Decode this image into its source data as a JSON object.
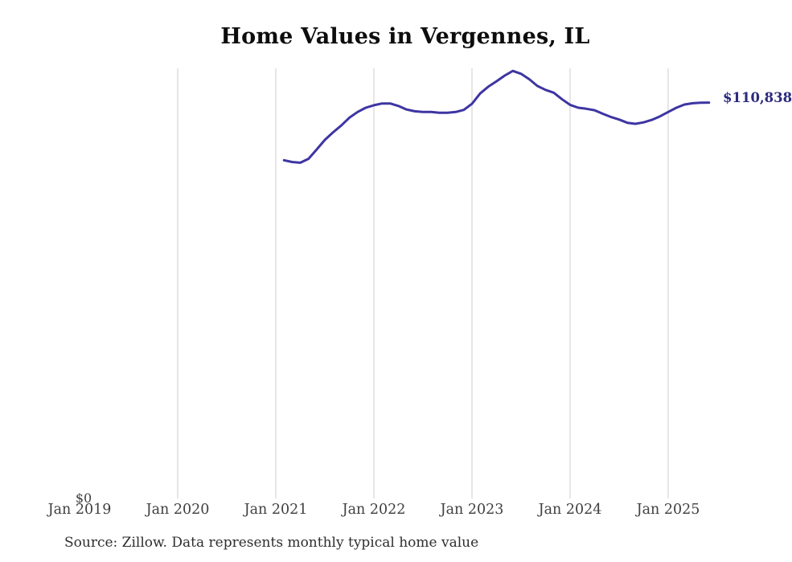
{
  "header": {
    "title": "Home Values in Vergennes, IL"
  },
  "footer": {
    "source": "Source: Zillow. Data represents monthly typical home value"
  },
  "chart_data": {
    "type": "line",
    "title": "Home Values in Vergennes, IL",
    "unit": "USD",
    "end_label": "$110,838",
    "latest_value": 110838,
    "colors": {
      "line": "#3e35a2",
      "end_label": "#2b2a7d",
      "gridline": "#cccccc",
      "tick_text": "#3f3f3f"
    },
    "y_axis": {
      "tick_label": "$0",
      "ylim": [
        0,
        120400
      ],
      "horizontal_gridlines": false
    },
    "x_axis": {
      "ticks": [
        {
          "label": "Jan 2019",
          "gridline": false
        },
        {
          "label": "Jan 2020",
          "gridline": true
        },
        {
          "label": "Jan 2021",
          "gridline": true
        },
        {
          "label": "Jan 2022",
          "gridline": true
        },
        {
          "label": "Jan 2023",
          "gridline": true
        },
        {
          "label": "Jan 2024",
          "gridline": true
        },
        {
          "label": "Jan 2025",
          "gridline": true
        }
      ]
    },
    "series": [
      {
        "name": "Monthly typical home value",
        "points": [
          [
            "2021-02",
            94700
          ],
          [
            "2021-03",
            94200
          ],
          [
            "2021-04",
            94000
          ],
          [
            "2021-05",
            95100
          ],
          [
            "2021-06",
            97700
          ],
          [
            "2021-07",
            100400
          ],
          [
            "2021-08",
            102500
          ],
          [
            "2021-09",
            104400
          ],
          [
            "2021-10",
            106600
          ],
          [
            "2021-11",
            108200
          ],
          [
            "2021-12",
            109400
          ],
          [
            "2022-01",
            110100
          ],
          [
            "2022-02",
            110600
          ],
          [
            "2022-03",
            110600
          ],
          [
            "2022-04",
            109900
          ],
          [
            "2022-05",
            108900
          ],
          [
            "2022-06",
            108400
          ],
          [
            "2022-07",
            108200
          ],
          [
            "2022-08",
            108200
          ],
          [
            "2022-09",
            108000
          ],
          [
            "2022-10",
            108000
          ],
          [
            "2022-11",
            108200
          ],
          [
            "2022-12",
            108800
          ],
          [
            "2023-01",
            110500
          ],
          [
            "2023-02",
            113400
          ],
          [
            "2023-03",
            115300
          ],
          [
            "2023-04",
            116800
          ],
          [
            "2023-05",
            118400
          ],
          [
            "2023-06",
            119700
          ],
          [
            "2023-07",
            118900
          ],
          [
            "2023-08",
            117400
          ],
          [
            "2023-09",
            115500
          ],
          [
            "2023-10",
            114400
          ],
          [
            "2023-11",
            113600
          ],
          [
            "2023-12",
            111800
          ],
          [
            "2024-01",
            110200
          ],
          [
            "2024-02",
            109400
          ],
          [
            "2024-03",
            109100
          ],
          [
            "2024-04",
            108700
          ],
          [
            "2024-05",
            107700
          ],
          [
            "2024-06",
            106800
          ],
          [
            "2024-07",
            106100
          ],
          [
            "2024-08",
            105200
          ],
          [
            "2024-09",
            104900
          ],
          [
            "2024-10",
            105300
          ],
          [
            "2024-11",
            106000
          ],
          [
            "2024-12",
            107000
          ],
          [
            "2025-01",
            108200
          ],
          [
            "2025-02",
            109400
          ],
          [
            "2025-03",
            110300
          ],
          [
            "2025-04",
            110650
          ],
          [
            "2025-05",
            110790
          ],
          [
            "2025-06",
            110838
          ]
        ]
      }
    ]
  }
}
